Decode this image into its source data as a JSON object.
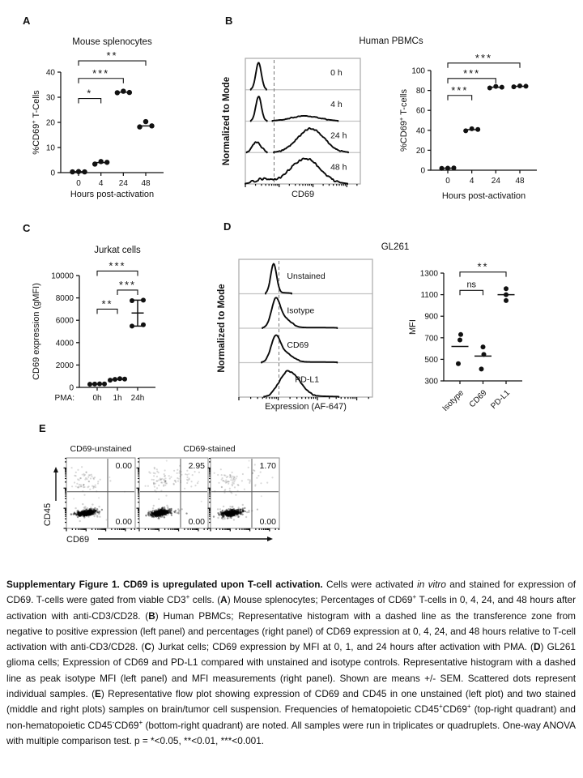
{
  "panel_labels": {
    "A": "A",
    "B": "B",
    "C": "C",
    "D": "D",
    "E": "E"
  },
  "chart_data": [
    {
      "id": "A",
      "type": "scatter",
      "title": "Mouse splenocytes",
      "ylabel_parts": [
        {
          "t": "%CD69"
        },
        {
          "t": "+",
          "sup": true
        },
        {
          "t": " T-Cells"
        }
      ],
      "xlabel": "Hours post-activation",
      "categories": [
        "0",
        "4",
        "24",
        "48"
      ],
      "ylim": [
        0,
        40
      ],
      "yticks": [
        0,
        10,
        20,
        30,
        40
      ],
      "groups": [
        [
          0.3,
          0.4,
          0.3
        ],
        [
          3.4,
          4.4,
          4.1
        ],
        [
          31.8,
          32.4,
          31.9
        ],
        [
          18.2,
          20.3,
          18.6
        ]
      ],
      "means": [
        0.35,
        4.0,
        32.0,
        18.6
      ],
      "brackets": [
        {
          "a": 0,
          "b": 1,
          "y": 29.5,
          "label": "*"
        },
        {
          "a": 0,
          "b": 2,
          "y": 37.5,
          "label": "***"
        },
        {
          "a": 0,
          "b": 3,
          "y": 44.5,
          "label": "**"
        }
      ]
    },
    {
      "id": "B-histogram",
      "type": "ridge-histogram",
      "ylabel": "Normalized to Mode",
      "xlabel": "CD69",
      "dash_x": 0.25,
      "rows": [
        {
          "label": "0 h",
          "peaks": [
            {
              "mu": 0.115,
              "s": 0.024,
              "a": 0.92
            }
          ],
          "noise": 0.01
        },
        {
          "label": "4 h",
          "peaks": [
            {
              "mu": 0.115,
              "s": 0.024,
              "a": 0.85
            },
            {
              "mu": 0.52,
              "s": 0.13,
              "a": 0.17
            }
          ],
          "noise": 0.02
        },
        {
          "label": "24 h",
          "peaks": [
            {
              "mu": 0.1,
              "s": 0.035,
              "a": 0.37
            },
            {
              "mu": 0.57,
              "s": 0.115,
              "a": 0.8
            }
          ],
          "noise": 0.04
        },
        {
          "label": "48 h",
          "peaks": [
            {
              "mu": 0.15,
              "s": 0.07,
              "a": 0.15
            },
            {
              "mu": 0.52,
              "s": 0.13,
              "a": 0.85
            }
          ],
          "noise": 0.05
        }
      ]
    },
    {
      "id": "B-scatter",
      "type": "scatter",
      "title": "Human PBMCs",
      "ylabel_parts": [
        {
          "t": "%CD69"
        },
        {
          "t": "+",
          "sup": true
        },
        {
          "t": " T-cells"
        }
      ],
      "xlabel": "Hours post-activation",
      "categories": [
        "0",
        "4",
        "24",
        "48"
      ],
      "ylim": [
        0,
        100
      ],
      "yticks": [
        0,
        20,
        40,
        60,
        80,
        100
      ],
      "groups": [
        [
          1.8,
          2.0,
          2.2
        ],
        [
          39.5,
          41.6,
          40.9
        ],
        [
          82.5,
          84.0,
          83.2
        ],
        [
          83.6,
          84.6,
          84.2
        ]
      ],
      "means": [
        2.0,
        40.7,
        83.2,
        84.1
      ],
      "brackets": [
        {
          "a": 0,
          "b": 1,
          "y": 75,
          "label": "***"
        },
        {
          "a": 0,
          "b": 2,
          "y": 92,
          "label": "***"
        },
        {
          "a": 0,
          "b": 3,
          "y": 107.5,
          "label": "***"
        }
      ]
    },
    {
      "id": "C",
      "type": "scatter",
      "title": "Jurkat cells",
      "ylabel_parts": [
        {
          "t": "CD69 expression (gMFI)"
        }
      ],
      "xlabel_prefix": "PMA:",
      "categories": [
        "0h",
        "1h",
        "24h"
      ],
      "ylim": [
        0,
        10000
      ],
      "yticks": [
        0,
        2000,
        4000,
        6000,
        8000,
        10000
      ],
      "groups": [
        [
          280,
          300,
          320,
          310
        ],
        [
          640,
          720,
          780,
          740
        ],
        [
          7750,
          7800,
          5480,
          5600
        ]
      ],
      "dx": [
        [
          -9,
          -3,
          3,
          9
        ],
        [
          -9,
          -3,
          3,
          9
        ],
        [
          -7,
          7,
          -7,
          7
        ]
      ],
      "means": [
        300,
        720,
        6650
      ],
      "error": {
        "group": 2,
        "lo": 5480,
        "hi": 7800
      },
      "brackets": [
        {
          "a": 0,
          "b": 1,
          "y": 7000,
          "label": "**"
        },
        {
          "a": 1,
          "b": 2,
          "y": 8700,
          "label": "***"
        },
        {
          "a": 0,
          "b": 2,
          "y": 10400,
          "label": "***"
        }
      ]
    },
    {
      "id": "D-histogram",
      "type": "ridge-histogram",
      "ylabel": "Normalized to Mode",
      "xlabel": "Expression (AF-647)",
      "dash_x": 0.3,
      "rows": [
        {
          "label": "Unstained",
          "peaks": [
            {
              "mu": 0.26,
              "s": 0.022,
              "a": 0.92
            },
            {
              "mu": 0.34,
              "s": 0.05,
              "a": 0.03
            }
          ],
          "noise": 0.01,
          "lx": 0.36
        },
        {
          "label": "Isotype",
          "peaks": [
            {
              "mu": 0.275,
              "s": 0.032,
              "a": 0.8
            },
            {
              "mu": 0.34,
              "s": 0.05,
              "a": 0.28
            },
            {
              "mu": 0.55,
              "s": 0.25,
              "a": 0.02
            }
          ],
          "noise": 0.015,
          "lx": 0.36
        },
        {
          "label": "CD69",
          "peaks": [
            {
              "mu": 0.275,
              "s": 0.035,
              "a": 0.72
            },
            {
              "mu": 0.35,
              "s": 0.055,
              "a": 0.26
            },
            {
              "mu": 0.55,
              "s": 0.25,
              "a": 0.02
            }
          ],
          "noise": 0.015,
          "lx": 0.36
        },
        {
          "label": "PD-L1",
          "peaks": [
            {
              "mu": 0.4,
              "s": 0.07,
              "a": 0.62
            },
            {
              "mu": 0.33,
              "s": 0.05,
              "a": 0.28
            },
            {
              "mu": 0.55,
              "s": 0.2,
              "a": 0.025
            }
          ],
          "noise": 0.03,
          "lx": 0.42
        }
      ]
    },
    {
      "id": "D-scatter",
      "type": "scatter",
      "title": "GL261",
      "ylabel_parts": [
        {
          "t": "MFI"
        }
      ],
      "categories": [
        "Isotype",
        "CD69",
        "PD-L1"
      ],
      "ylim": [
        300,
        1300
      ],
      "yticks": [
        300,
        500,
        700,
        900,
        1100,
        1300
      ],
      "groups": [
        [
          460,
          680,
          730
        ],
        [
          410,
          545,
          615
        ],
        [
          1045,
          1100,
          1155
        ]
      ],
      "dx": [
        [
          -2,
          0,
          1
        ],
        [
          -2,
          1,
          0
        ],
        [
          0,
          0,
          0
        ]
      ],
      "means": [
        620,
        530,
        1100
      ],
      "brackets": [
        {
          "a": 0,
          "b": 1,
          "y": 1140,
          "label": "ns"
        },
        {
          "a": 0,
          "b": 2,
          "y": 1310,
          "label": "**"
        }
      ]
    },
    {
      "id": "E",
      "type": "flow-scatter",
      "xlabel": "CD69",
      "ylabel": "CD45",
      "gate_x": 0.6,
      "gate_y": 0.48,
      "titles": [
        {
          "text": "CD69-unstained",
          "plots": [
            0,
            0
          ]
        },
        {
          "text": "CD69-stained",
          "plots": [
            1,
            2
          ]
        }
      ],
      "plots": [
        {
          "top_right": "0.00",
          "bottom_right": "0.00",
          "seed": 101,
          "upper_right_n": 0,
          "trail_n": 0
        },
        {
          "top_right": "2.95",
          "bottom_right": "0.00",
          "seed": 202,
          "upper_right_n": 30,
          "trail_n": 12
        },
        {
          "top_right": "1.70",
          "bottom_right": "0.00",
          "seed": 303,
          "upper_right_n": 18,
          "trail_n": 6
        }
      ]
    }
  ],
  "caption": {
    "segments": [
      {
        "t": "Supplementary Figure 1.  CD69 is upregulated upon T-cell activation. ",
        "b": true
      },
      {
        "t": "Cells were activated "
      },
      {
        "t": "in vitro",
        "i": true
      },
      {
        "t": " and stained for expression of CD69. T-cells were gated from viable CD3"
      },
      {
        "t": "+",
        "sup": true
      },
      {
        "t": " cells. ("
      },
      {
        "t": "A",
        "b": true
      },
      {
        "t": ") Mouse splenocytes; Percentages of CD69"
      },
      {
        "t": "+",
        "sup": true
      },
      {
        "t": " T-cells in 0, 4, 24, and 48 hours after activation with anti-CD3/CD28. ("
      },
      {
        "t": "B",
        "b": true
      },
      {
        "t": ") Human PBMCs; Representative histogram with a dashed line as the transference zone from negative to positive expression (left panel) and percentages (right panel) of CD69 expression at 0, 4, 24, and 48 hours relative to T-cell activation with anti-CD3/CD28. ("
      },
      {
        "t": "C",
        "b": true
      },
      {
        "t": ") Jurkat cells; CD69 expression by MFI at 0, 1, and 24 hours after activation with PMA. ("
      },
      {
        "t": "D",
        "b": true
      },
      {
        "t": ") GL261 glioma cells; Expression of CD69 and PD-L1 compared with unstained and isotype controls. Representative histogram with a dashed line as peak isotype MFI (left panel) and MFI measurements (right panel). Shown are means +/- SEM. Scattered dots represent individual samples. ("
      },
      {
        "t": "E",
        "b": true
      },
      {
        "t": ") Representative flow plot showing expression of CD69 and CD45 in one unstained (left plot) and two stained (middle and right plots) samples on brain/tumor cell suspension. Frequencies of hematopoietic CD45"
      },
      {
        "t": "+",
        "sup": true
      },
      {
        "t": "CD69"
      },
      {
        "t": "+",
        "sup": true
      },
      {
        "t": " (top-right quadrant) and non-hematopoietic CD45"
      },
      {
        "t": "-",
        "sup": true
      },
      {
        "t": "CD69"
      },
      {
        "t": "+",
        "sup": true
      },
      {
        "t": " (bottom-right quadrant) are noted. All samples were run in triplicates or quadruplets. One-way ANOVA with multiple comparison test. p = *<0.05, **<0.01, ***<0.001."
      }
    ]
  }
}
